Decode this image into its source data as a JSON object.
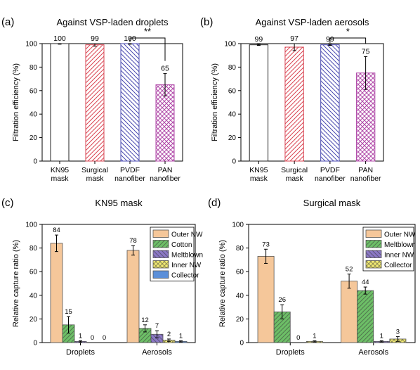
{
  "chart_data": [
    {
      "panel": "(a)",
      "type": "bar",
      "title": "Against VSP-laden droplets",
      "ylabel": "Filtration efficiency (%)",
      "xlabel": "",
      "ylim": [
        0,
        100
      ],
      "yticks": [
        0,
        20,
        40,
        60,
        80,
        100
      ],
      "categories": [
        [
          "KN95",
          "mask"
        ],
        [
          "Surgical",
          "mask"
        ],
        [
          "PVDF",
          "nanofiber"
        ],
        [
          "PAN",
          "nanofiber"
        ]
      ],
      "values": [
        100,
        99,
        100,
        65
      ],
      "errors": [
        0.5,
        1.2,
        0.5,
        9.5
      ],
      "labels": [
        "100",
        "99",
        "100",
        "65"
      ],
      "colors": [
        "#222222",
        "#d94452",
        "#4a4ab0",
        "#b04aa8"
      ],
      "patterns": [
        "none",
        "diag-right",
        "diag-left",
        "cross"
      ],
      "significance": {
        "from": 2,
        "to": 3,
        "text": "**"
      }
    },
    {
      "panel": "(b)",
      "type": "bar",
      "title": "Against VSP-laden aerosols",
      "ylabel": "Filtration efficiency (%)",
      "xlabel": "",
      "ylim": [
        0,
        100
      ],
      "yticks": [
        0,
        20,
        40,
        60,
        80,
        100
      ],
      "categories": [
        [
          "KN95",
          "mask"
        ],
        [
          "Surgical",
          "mask"
        ],
        [
          "PVDF",
          "nanofiber"
        ],
        [
          "PAN",
          "nanofiber"
        ]
      ],
      "values": [
        99,
        97,
        99,
        75
      ],
      "errors": [
        0.5,
        3,
        0.5,
        14
      ],
      "labels": [
        "99",
        "97",
        "99",
        "75"
      ],
      "colors": [
        "#222222",
        "#d94452",
        "#4a4ab0",
        "#b04aa8"
      ],
      "patterns": [
        "none",
        "diag-right",
        "diag-left",
        "cross"
      ],
      "significance": {
        "from": 2,
        "to": 3,
        "text": "*"
      }
    },
    {
      "panel": "(c)",
      "type": "bar",
      "title": "KN95 mask",
      "ylabel": "Relative capture ratio (%)",
      "xlabel": "",
      "ylim": [
        0,
        100
      ],
      "yticks": [
        0,
        20,
        40,
        60,
        80,
        100
      ],
      "categories": [
        "Droplets",
        "Aerosols"
      ],
      "legend_position": "top-right",
      "series": [
        {
          "name": "Outer NW",
          "values": [
            84,
            78
          ],
          "errors": [
            7,
            4
          ],
          "labels": [
            "84",
            "78"
          ],
          "color": "#f5c79a",
          "pattern": "none"
        },
        {
          "name": "Cotton",
          "values": [
            15,
            12
          ],
          "errors": [
            7,
            3
          ],
          "labels": [
            "15",
            "12"
          ],
          "color": "#6dbf67",
          "pattern": "diag-right"
        },
        {
          "name": "Meltblown",
          "values": [
            1,
            7
          ],
          "errors": [
            0.5,
            3
          ],
          "labels": [
            "1",
            "7"
          ],
          "color": "#8b78c5",
          "pattern": "diag-left"
        },
        {
          "name": "Inner NW",
          "values": [
            0,
            2
          ],
          "errors": [
            0,
            1
          ],
          "labels": [
            "0",
            "2"
          ],
          "color": "#f2ea72",
          "pattern": "cross"
        },
        {
          "name": "Collector",
          "values": [
            0,
            1
          ],
          "errors": [
            0,
            0.5
          ],
          "labels": [
            "0",
            "1"
          ],
          "color": "#5b8fd9",
          "pattern": "none"
        }
      ]
    },
    {
      "panel": "(d)",
      "type": "bar",
      "title": "Surgical mask",
      "ylabel": "Relative capture ratio (%)",
      "xlabel": "",
      "ylim": [
        0,
        100
      ],
      "yticks": [
        0,
        20,
        40,
        60,
        80,
        100
      ],
      "categories": [
        "Droplets",
        "Aerosols"
      ],
      "legend_position": "top-right",
      "series": [
        {
          "name": "Outer NW",
          "values": [
            73,
            52
          ],
          "errors": [
            6,
            6
          ],
          "labels": [
            "73",
            "52"
          ],
          "color": "#f5c79a",
          "pattern": "none"
        },
        {
          "name": "Meltblown",
          "values": [
            26,
            44
          ],
          "errors": [
            6,
            3
          ],
          "labels": [
            "26",
            "44"
          ],
          "color": "#6dbf67",
          "pattern": "diag-right"
        },
        {
          "name": "Inner NW",
          "values": [
            0,
            1
          ],
          "errors": [
            0,
            0.5
          ],
          "labels": [
            "0",
            "1"
          ],
          "color": "#8b78c5",
          "pattern": "diag-left"
        },
        {
          "name": "Collector",
          "values": [
            1,
            3
          ],
          "errors": [
            0.5,
            2
          ],
          "labels": [
            "1",
            "3"
          ],
          "color": "#f2ea72",
          "pattern": "cross"
        }
      ]
    }
  ]
}
